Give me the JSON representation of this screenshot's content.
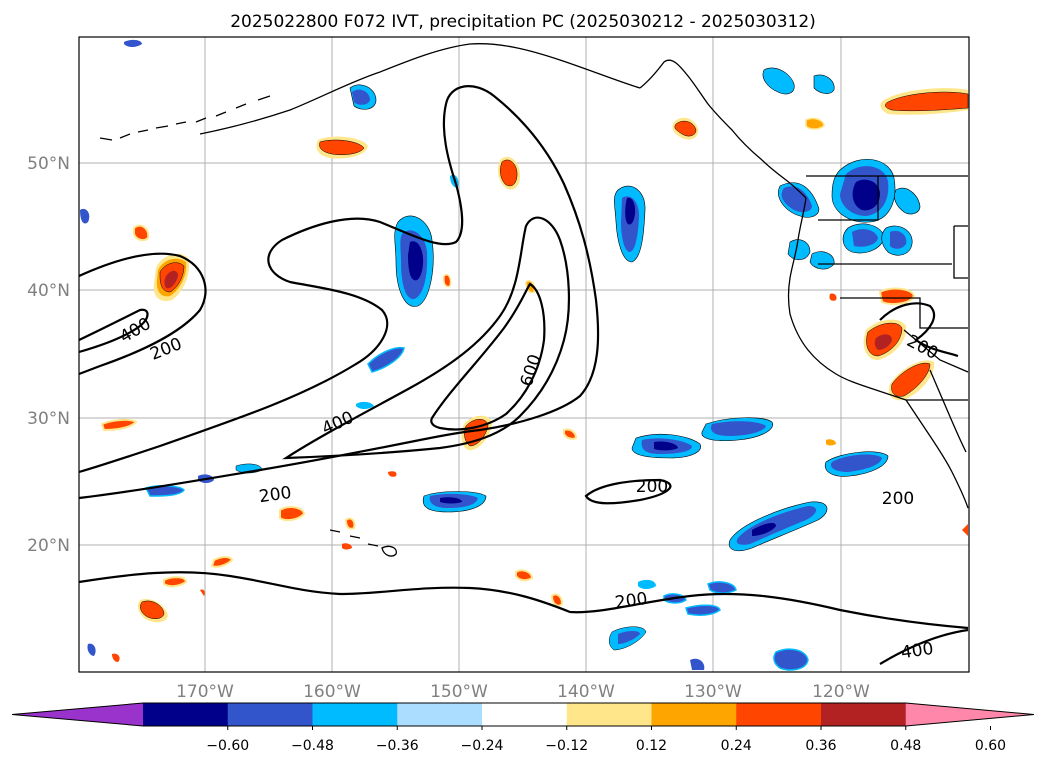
{
  "title": "2025022800 F072 IVT, precipitation PC (2025030212 - 2025030312)",
  "latitude_labels": [
    "50°N",
    "40°N",
    "30°N",
    "20°N"
  ],
  "longitude_labels": [
    "170°W",
    "160°W",
    "150°W",
    "140°W",
    "130°W",
    "120°W"
  ],
  "contour_labels": [
    "400",
    "200",
    "400",
    "600",
    "200",
    "200",
    "200",
    "200",
    "400",
    "200"
  ],
  "colorbar": {
    "ticks": [
      "−0.60",
      "−0.48",
      "−0.36",
      "−0.24",
      "−0.12",
      "0.12",
      "0.24",
      "0.36",
      "0.48",
      "0.60"
    ],
    "colors": [
      "#9933cc",
      "#00008b",
      "#3355cc",
      "#00bbff",
      "#aaddff",
      "#ffffff",
      "#ffe68a",
      "#ffa500",
      "#ff4500",
      "#b22222",
      "#ff88aa"
    ]
  },
  "shading_colors": {
    "neg_strong": "#00008b",
    "neg_mid": "#3355cc",
    "neg_weak": "#00bbff",
    "neg_faint": "#aaddff",
    "pos_faint": "#ffe68a",
    "pos_weak": "#ffa500",
    "pos_mid": "#ff4500",
    "pos_strong": "#b22222"
  }
}
